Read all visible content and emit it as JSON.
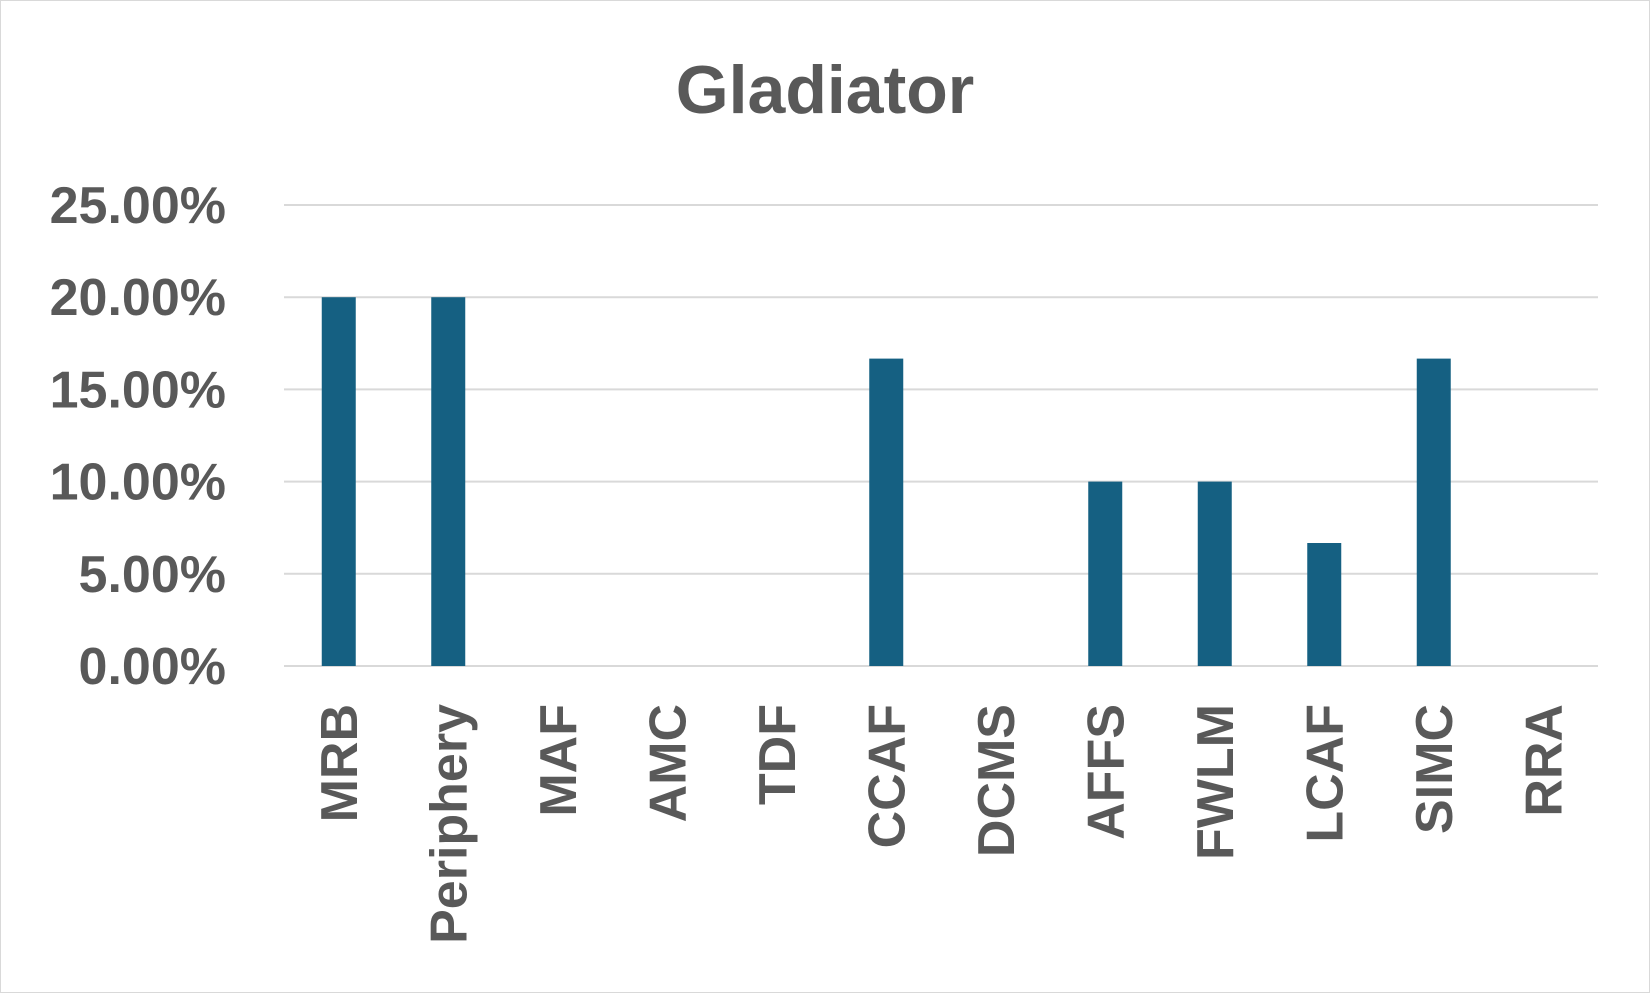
{
  "chart_data": {
    "type": "bar",
    "title": "Gladiator",
    "xlabel": "",
    "ylabel": "",
    "categories": [
      "MRB",
      "Periphery",
      "MAF",
      "AMC",
      "TDF",
      "CCAF",
      "DCMS",
      "AFFS",
      "FWLM",
      "LCAF",
      "SIMC",
      "RRA"
    ],
    "values": [
      20.0,
      20.0,
      0.0,
      0.0,
      0.0,
      16.67,
      0.0,
      10.0,
      10.0,
      6.67,
      16.67,
      0.0
    ],
    "value_format": "percent",
    "ylim": [
      0,
      25
    ],
    "yticks": [
      0,
      5,
      10,
      15,
      20,
      25
    ],
    "ytick_labels": [
      "0.00%",
      "5.00%",
      "10.00%",
      "15.00%",
      "20.00%",
      "25.00%"
    ],
    "grid": true,
    "legend": "none",
    "colors": {
      "bar": "#156082",
      "text": "#595959",
      "grid": "#d9d9d9"
    }
  }
}
